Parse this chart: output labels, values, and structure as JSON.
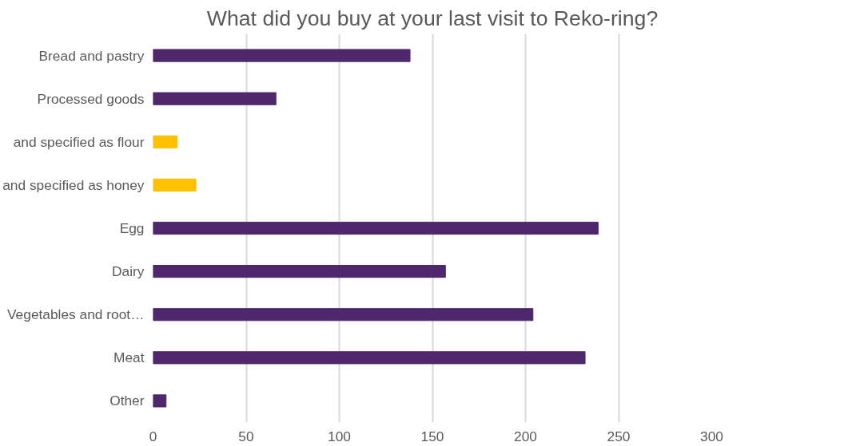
{
  "chart_data": {
    "type": "bar",
    "orientation": "horizontal",
    "title": "What did you buy at your last visit to Reko-ring?",
    "categories": [
      "Bread and pastry",
      "Processed goods",
      "and specified as flour",
      "and specified as honey",
      "Egg",
      "Dairy",
      "Vegetables and root…",
      "Meat",
      "Other"
    ],
    "values": [
      138,
      66,
      13,
      23,
      239,
      157,
      204,
      232,
      7
    ],
    "colors": [
      "#4f276d",
      "#4f276d",
      "#ffc000",
      "#ffc000",
      "#4f276d",
      "#4f276d",
      "#4f276d",
      "#4f276d",
      "#4f276d"
    ],
    "xlim": [
      0,
      300
    ],
    "xticks": [
      0,
      50,
      100,
      150,
      200,
      250,
      300
    ],
    "grid": "x"
  }
}
